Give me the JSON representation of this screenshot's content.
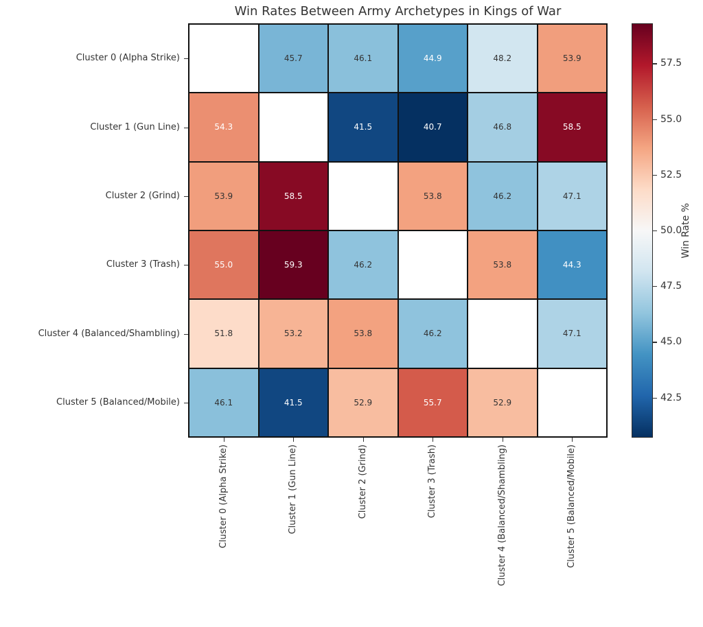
{
  "chart_data": {
    "type": "heatmap",
    "title": "Win Rates Between Army Archetypes in Kings of War",
    "categories": [
      "Cluster 0 (Alpha Strike)",
      "Cluster 1 (Gun Line)",
      "Cluster 2 (Grind)",
      "Cluster 3 (Trash)",
      "Cluster 4 (Balanced/Shambling)",
      "Cluster 5 (Balanced/Mobile)"
    ],
    "matrix": [
      [
        null,
        45.7,
        46.1,
        44.9,
        48.2,
        53.9
      ],
      [
        54.3,
        null,
        41.5,
        40.7,
        46.8,
        58.5
      ],
      [
        53.9,
        58.5,
        null,
        53.8,
        46.2,
        47.1
      ],
      [
        55.0,
        59.3,
        46.2,
        null,
        53.8,
        44.3
      ],
      [
        51.8,
        53.2,
        53.8,
        46.2,
        null,
        47.1
      ],
      [
        46.1,
        41.5,
        52.9,
        55.7,
        52.9,
        null
      ]
    ],
    "value_format_decimals": 1,
    "colorbar": {
      "label": "Win Rate %",
      "ticks": [
        57.5,
        55.0,
        52.5,
        50.0,
        47.5,
        45.0,
        42.5
      ],
      "vmin": 40.7,
      "vmax": 59.3,
      "colormap": "RdBu_r",
      "anchor_colors_low_to_high": [
        "#053061",
        "#2166ac",
        "#4393c3",
        "#92c5de",
        "#d1e5f0",
        "#f7f7f7",
        "#fddbc7",
        "#f4a582",
        "#d6604d",
        "#b2182b",
        "#67001f"
      ]
    },
    "style": {
      "grid_line_color": "#111111",
      "nan_cell_color": "#ffffff",
      "annotation_dark_text": "#333333",
      "annotation_light_text": "#ffffff",
      "title_color": "#333333",
      "tick_label_color": "#333333"
    },
    "legend_position": "right-colorbar",
    "grid": "cell-borders-on"
  }
}
